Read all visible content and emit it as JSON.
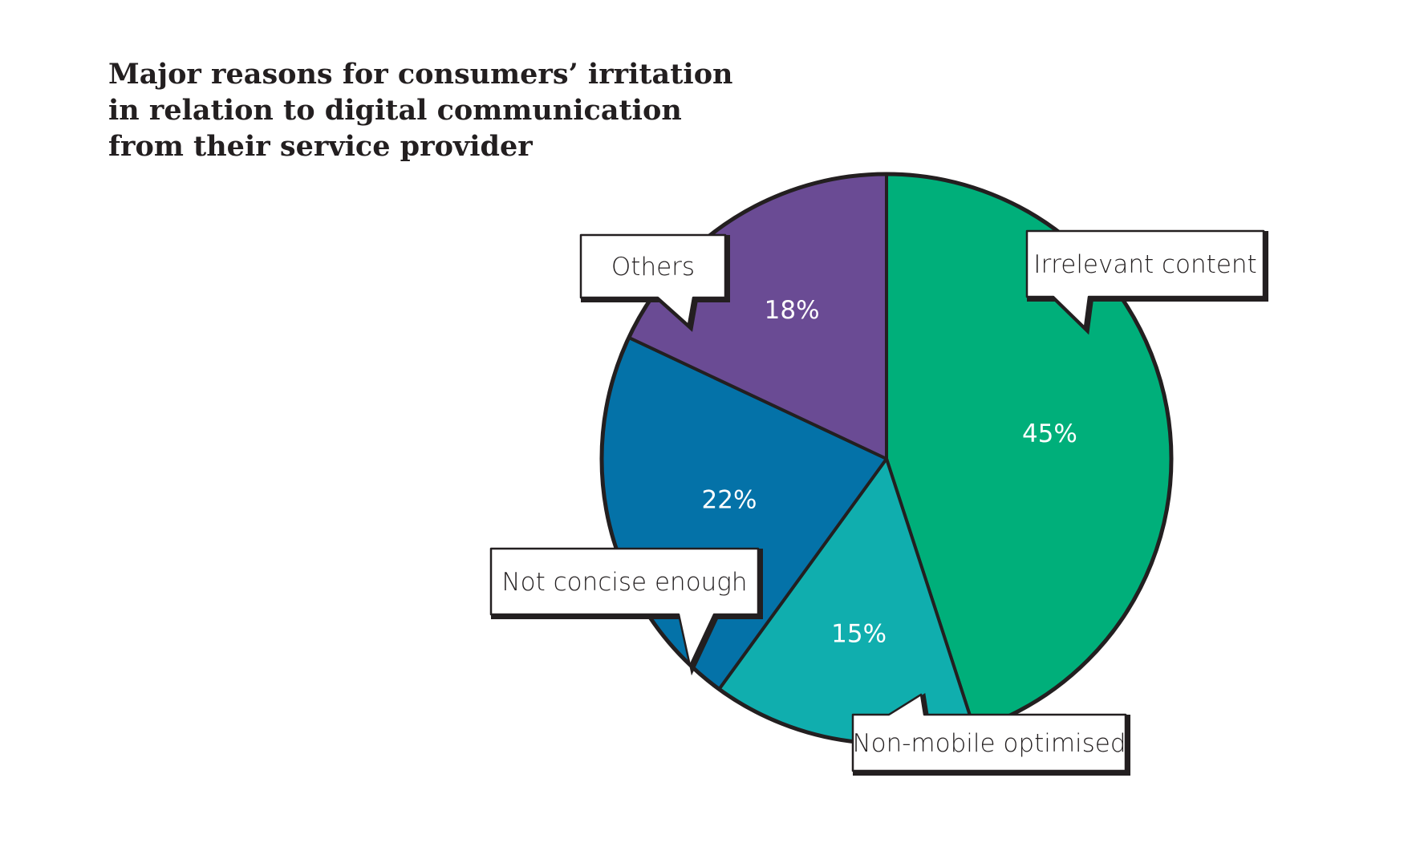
{
  "chart_title": {
    "lines": [
      "Major reasons for consumers’ irritation",
      "in relation to digital communication",
      "from their service provider"
    ]
  },
  "chart_data": {
    "type": "pie",
    "title": "Major reasons for consumers’ irritation in relation to digital communication from their service provider",
    "slices": [
      {
        "label": "Irrelevant content",
        "value": 45,
        "value_label": "45%",
        "color": "#00af7a"
      },
      {
        "label": "Non-mobile optimised",
        "value": 15,
        "value_label": "15%",
        "color": "#10aeae"
      },
      {
        "label": "Not concise enough",
        "value": 22,
        "value_label": "22%",
        "color": "#0472a8"
      },
      {
        "label": "Others",
        "value": 18,
        "value_label": "18%",
        "color": "#6a4b94"
      }
    ],
    "start": "top",
    "direction": "clockwise",
    "outline_color": "#231f20"
  }
}
